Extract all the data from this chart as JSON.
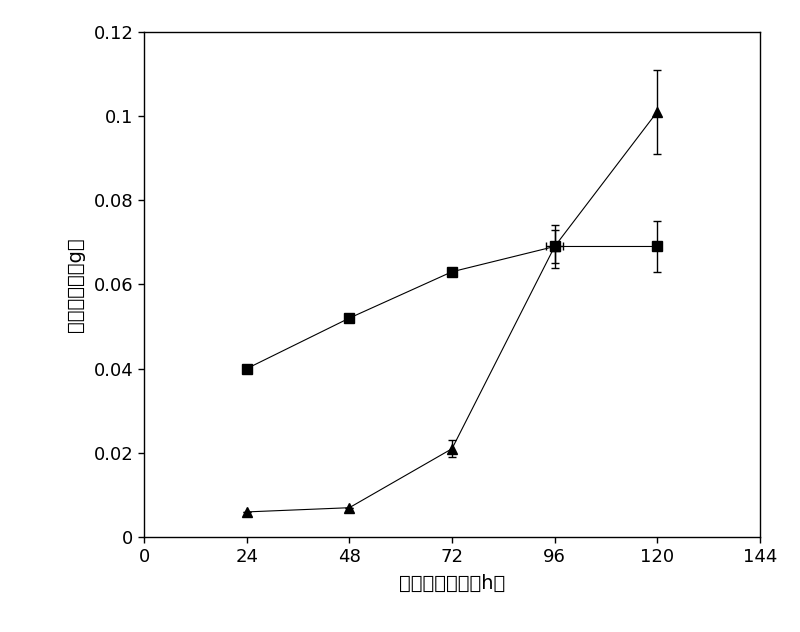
{
  "x": [
    24,
    48,
    72,
    96,
    120
  ],
  "series1_y": [
    0.04,
    0.052,
    0.063,
    0.069,
    0.069
  ],
  "series1_yerr": [
    0.0,
    0.0,
    0.0,
    0.004,
    0.006
  ],
  "series2_y": [
    0.006,
    0.007,
    0.021,
    0.069,
    0.101
  ],
  "series2_yerr": [
    0.0,
    0.0,
    0.002,
    0.005,
    0.01
  ],
  "series1_xerr_val": [
    0,
    0,
    0,
    2,
    0
  ],
  "series2_xerr_val": [
    0,
    0,
    0,
    0,
    0
  ],
  "xlim": [
    0,
    144
  ],
  "ylim": [
    0,
    0.12
  ],
  "xticks": [
    0,
    24,
    48,
    72,
    96,
    120,
    144
  ],
  "yticks": [
    0,
    0.02,
    0.04,
    0.06,
    0.08,
    0.1,
    0.12
  ],
  "xlabel": "发酵培养时间（h）",
  "ylabel": "菌丝体干重（g）",
  "line_color": "#000000",
  "plot_bg_color": "#ffffff",
  "fig_bg_color": "#ffffff",
  "line_style": "-",
  "marker1": "s",
  "marker2": "^",
  "marker_size": 7,
  "line_width": 0.8,
  "capsize": 3,
  "elinewidth": 1.0
}
